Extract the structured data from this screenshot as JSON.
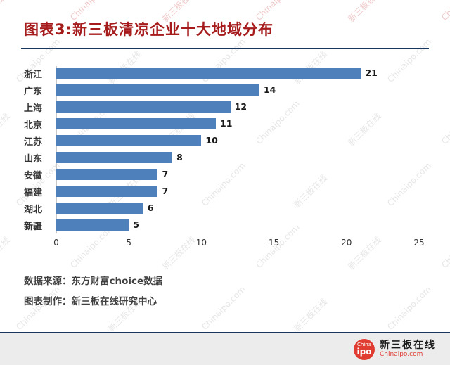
{
  "title": "图表3:新三板清凉企业十大地域分布",
  "sources": {
    "line1": "数据来源：东方财富choice数据",
    "line2": "图表制作：新三板在线研究中心"
  },
  "footer": {
    "logo_circle_top": "China",
    "logo_circle_bottom": "ipo",
    "brand_name": "新三板在线",
    "brand_site": "Chinaipo.com"
  },
  "watermark": {
    "texts": [
      "新三板在线",
      "Chinaipo.com"
    ],
    "color": "rgba(128,128,128,0.20)",
    "accent_color": "rgba(210,100,100,0.35)"
  },
  "colors": {
    "bar": "#4e80bc",
    "title": "#a61c1c",
    "divider": "#17375e",
    "logo_red": "#e03c31"
  },
  "chart_data": {
    "type": "bar",
    "orientation": "horizontal",
    "title": "图表3:新三板清凉企业十大地域分布",
    "categories": [
      "浙江",
      "广东",
      "上海",
      "北京",
      "江苏",
      "山东",
      "安徽",
      "福建",
      "湖北",
      "新疆"
    ],
    "values": [
      21,
      14,
      12,
      11,
      10,
      8,
      7,
      7,
      6,
      5
    ],
    "xlabel": "",
    "ylabel": "",
    "xlim": [
      0,
      25
    ],
    "xticks": [
      0,
      5,
      10,
      15,
      20,
      25
    ],
    "grid": false,
    "legend": "none",
    "value_labels": true
  }
}
